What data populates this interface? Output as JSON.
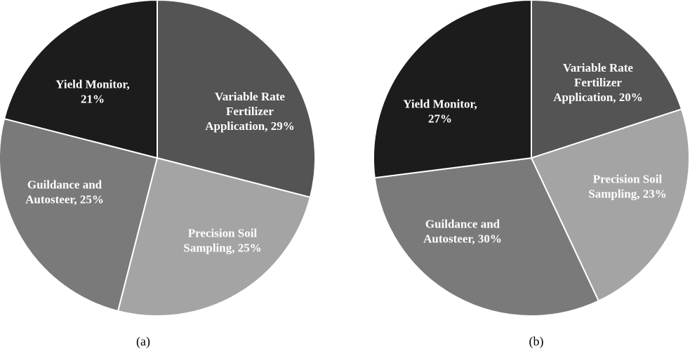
{
  "chart_data": [
    {
      "type": "pie",
      "caption": "(a)",
      "start_angle_deg": 0,
      "slices": [
        {
          "label": "Variable Rate Fertilizer Application",
          "value": 29,
          "display_lines": [
            "Variable Rate",
            "Fertilizer",
            "Application, 29%"
          ],
          "color": "#545454"
        },
        {
          "label": "Precision Soil Sampling",
          "value": 25,
          "display_lines": [
            "Precision Soil",
            "Sampling, 25%"
          ],
          "color": "#a4a4a4"
        },
        {
          "label": "Guildance and Autosteer",
          "value": 25,
          "display_lines": [
            "Guildance and",
            "Autosteer, 25%"
          ],
          "color": "#7a7a7a"
        },
        {
          "label": "Yield Monitor",
          "value": 21,
          "display_lines": [
            "Yield Monitor,",
            "21%"
          ],
          "color": "#1c1c1c"
        }
      ]
    },
    {
      "type": "pie",
      "caption": "(b)",
      "start_angle_deg": 0,
      "slices": [
        {
          "label": "Variable Rate Fertilizer Application",
          "value": 20,
          "display_lines": [
            "Variable Rate",
            "Fertilizer",
            "Application, 20%"
          ],
          "color": "#545454"
        },
        {
          "label": "Precision Soil Sampling",
          "value": 23,
          "display_lines": [
            "Precision Soil",
            "Sampling, 23%"
          ],
          "color": "#a4a4a4"
        },
        {
          "label": "Guildance and Autosteer",
          "value": 30,
          "display_lines": [
            "Guildance and",
            "Autosteer, 30%"
          ],
          "color": "#7a7a7a"
        },
        {
          "label": "Yield Monitor",
          "value": 27,
          "display_lines": [
            "Yield Monitor,",
            "27%"
          ],
          "color": "#1c1c1c"
        }
      ]
    }
  ]
}
